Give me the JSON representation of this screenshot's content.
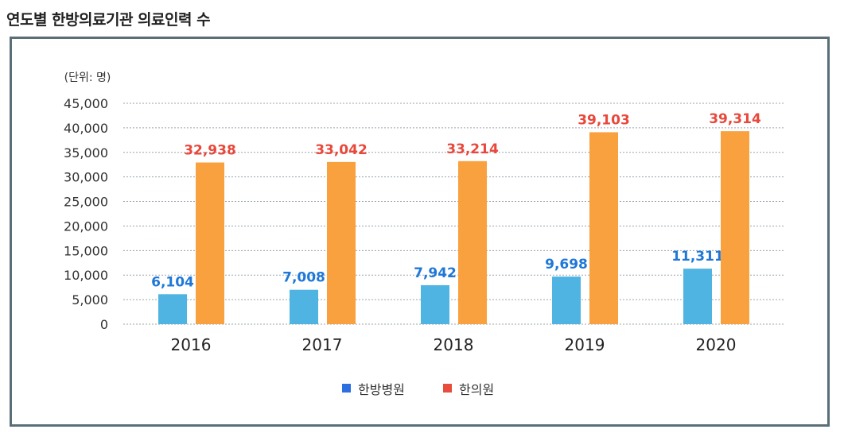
{
  "title": "연도별 한방의료기관 의료인력 수",
  "chart_data": {
    "type": "bar",
    "title": "연도별 한방의료기관 의료인력 수",
    "unit_label": "(단위: 명)",
    "xlabel": "",
    "ylabel": "",
    "ylim": [
      0,
      45000
    ],
    "yticks": [
      0,
      5000,
      10000,
      15000,
      20000,
      25000,
      30000,
      35000,
      40000,
      45000
    ],
    "ytick_labels": [
      "0",
      "5,000",
      "10,000",
      "15,000",
      "20,000",
      "25,000",
      "30,000",
      "35,000",
      "40,000",
      "45,000"
    ],
    "grid": true,
    "legend_position": "bottom-center",
    "categories": [
      "2016",
      "2017",
      "2018",
      "2019",
      "2020"
    ],
    "series": [
      {
        "name": "한방병원",
        "values": [
          6104,
          7008,
          7942,
          9698,
          11311
        ],
        "labels": [
          "6,104",
          "7,008",
          "7,942",
          "9,698",
          "11,311"
        ],
        "color": "#4fb4e2",
        "label_color": "#1f78d8",
        "legend_color": "#2b6fe0"
      },
      {
        "name": "한의원",
        "values": [
          32938,
          33042,
          33214,
          39103,
          39314
        ],
        "labels": [
          "32,938",
          "33,042",
          "33,214",
          "39,103",
          "39,314"
        ],
        "color": "#f9a13e",
        "label_color": "#e8483b",
        "legend_color": "#e84c3d"
      }
    ]
  }
}
